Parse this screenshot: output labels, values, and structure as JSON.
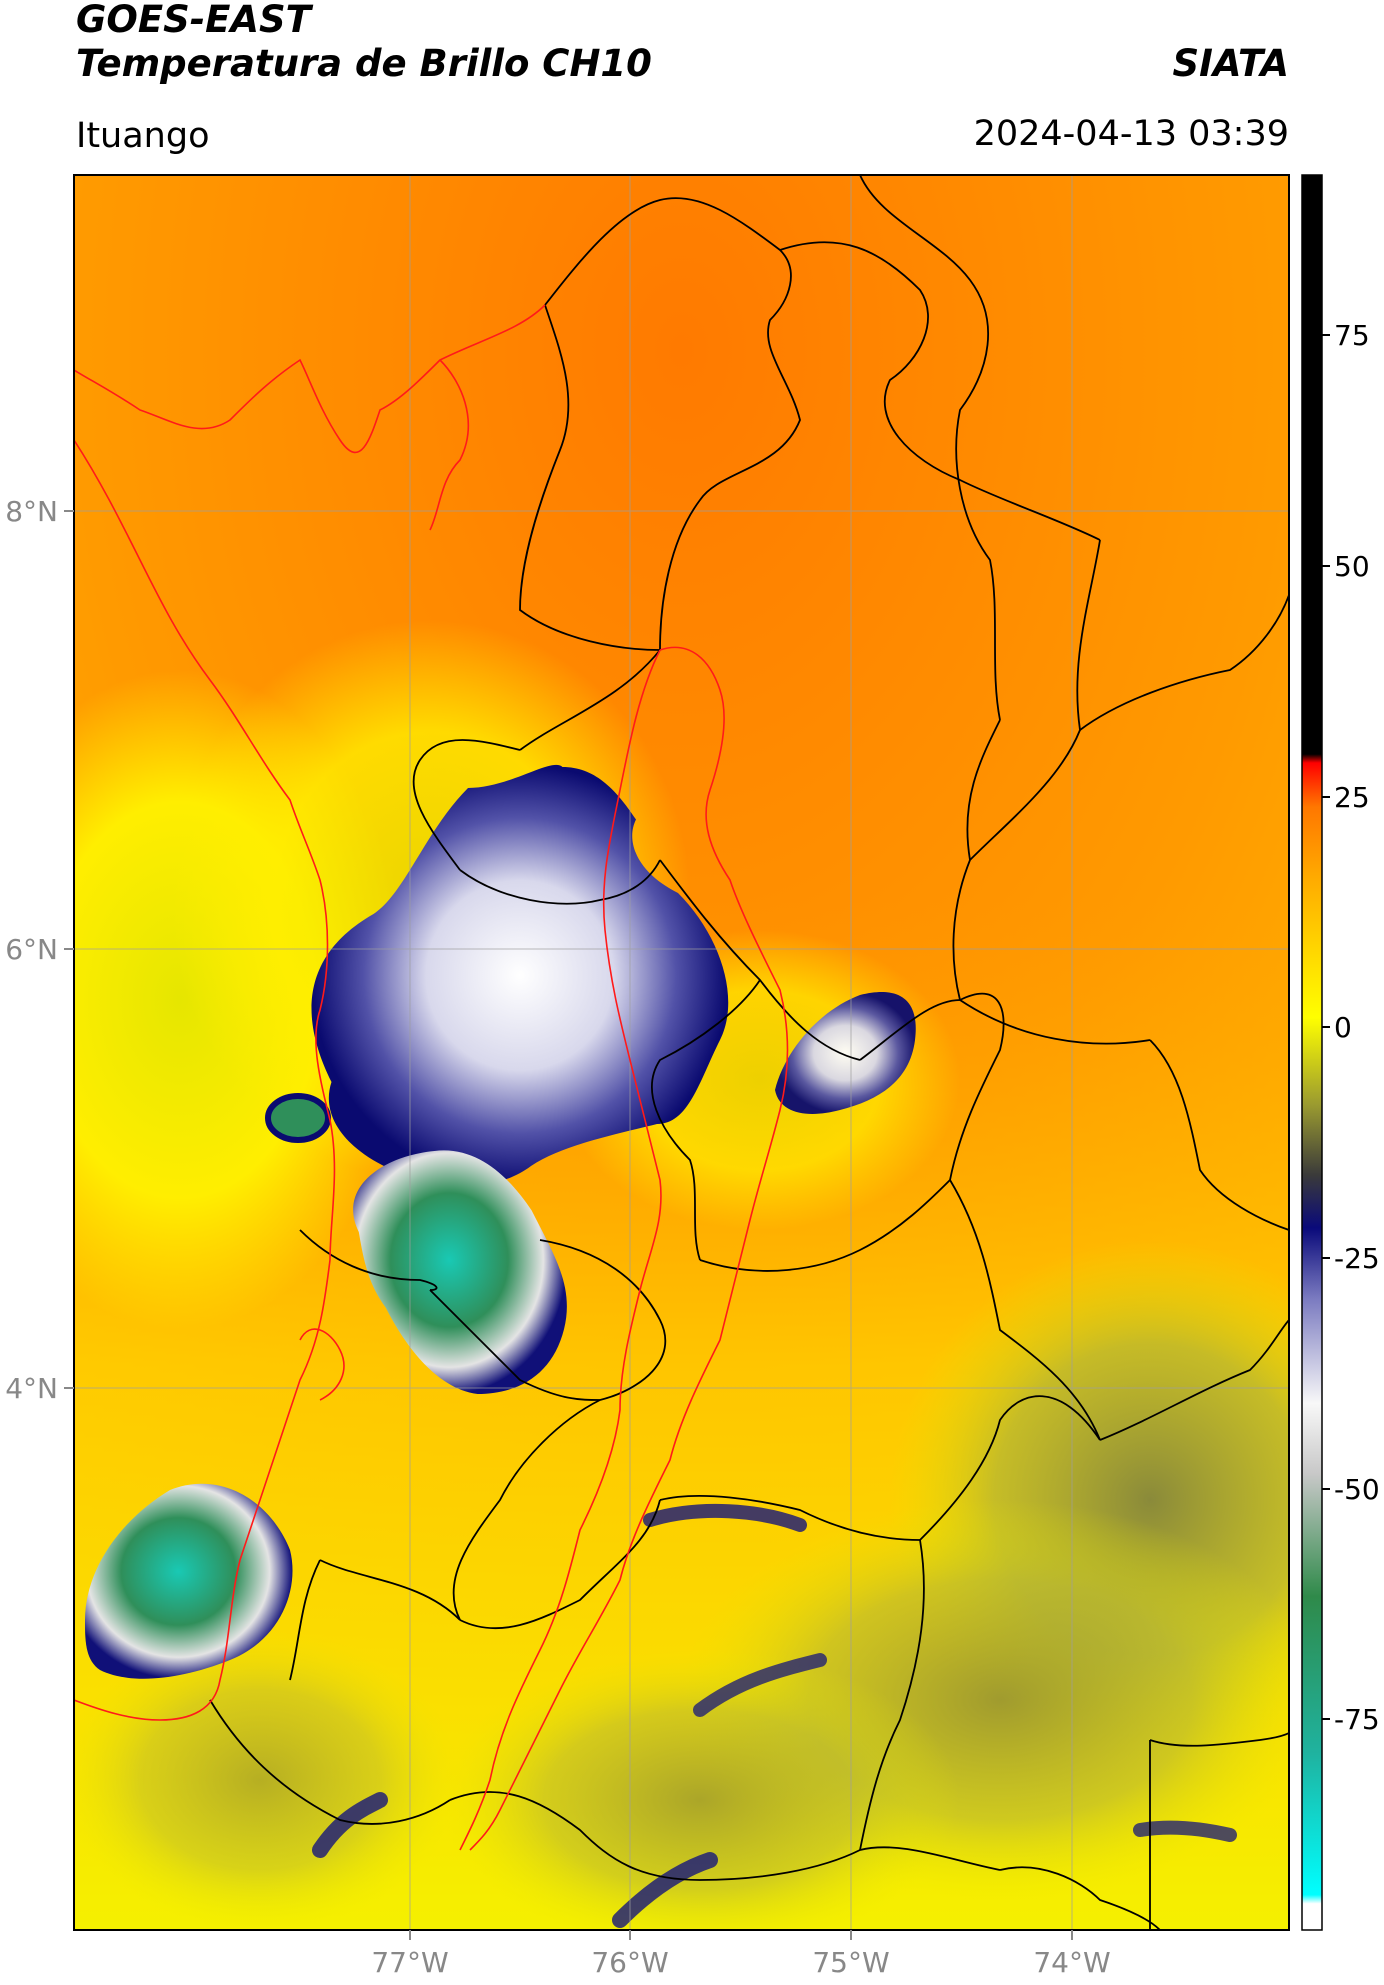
{
  "header": {
    "satellite": "GOES-EAST",
    "product": "Temperatura de Brillo CH10",
    "brand": "SIATA",
    "location": "Ituango",
    "timestamp": "2024-04-13 03:39"
  },
  "map": {
    "lat_labels": [
      "8°N",
      "6°N",
      "4°N"
    ],
    "lon_labels": [
      "77°W",
      "76°W",
      "75°W",
      "74°W"
    ]
  },
  "colorbar": {
    "ticks": [
      "75",
      "50",
      "25",
      "0",
      "-25",
      "-50",
      "-75"
    ],
    "range": [
      -95,
      90
    ],
    "colors": {
      "warm": "#ff7f00",
      "yellow": "#ffee00",
      "olive": "#7a7a33",
      "navy": "#0e0e6e",
      "white": "#f4f4f4",
      "green": "#2e8b57",
      "cyan": "#00e5e5",
      "red": "#ff0000",
      "black": "#000000"
    }
  },
  "colors": {
    "state_borders": "#000000",
    "coastline": "#ff1a1a",
    "gridlines": "#9e9e9e"
  }
}
